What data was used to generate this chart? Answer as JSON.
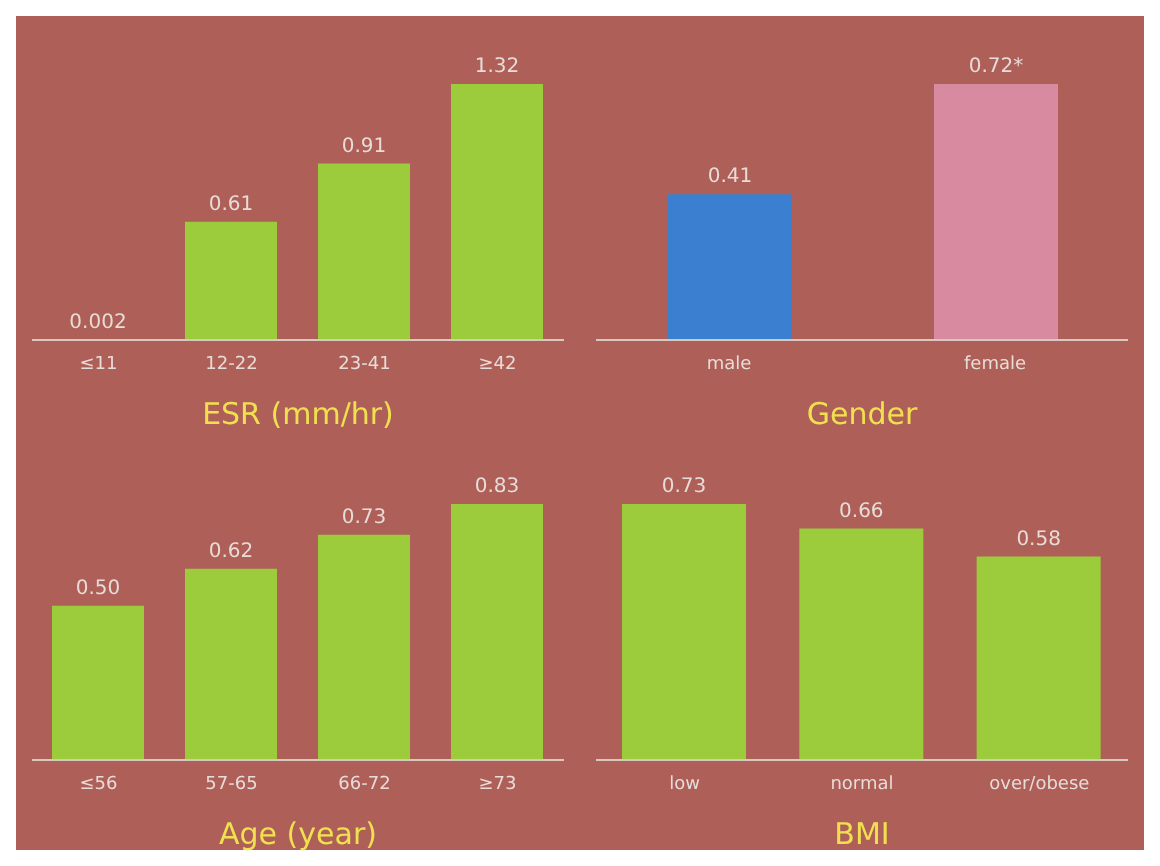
{
  "chart_data": [
    {
      "type": "bar",
      "xlabel": "ESR (mm/hr)",
      "categories": [
        "≤11",
        "12-22",
        "23-41",
        "≥42"
      ],
      "values": [
        0.002,
        0.61,
        0.91,
        1.32
      ],
      "color": "#9ccc3c",
      "data_labels": true,
      "tick_labels": "x"
    },
    {
      "type": "bar",
      "xlabel": "Gender",
      "categories": [
        "male",
        "female"
      ],
      "values": [
        0.41,
        0.72
      ],
      "colors": [
        "#3a7fd0",
        "#d88aa0"
      ],
      "value_labels": [
        "0.41",
        "0.72*"
      ],
      "tick_labels": "x"
    },
    {
      "type": "bar",
      "xlabel": "Age (year)",
      "categories": [
        "≤56",
        "57-65",
        "66-72",
        "≥73"
      ],
      "values": [
        0.5,
        0.62,
        0.73,
        0.83
      ],
      "color": "#9ccc3c",
      "value_labels": [
        "0.50",
        "0.62",
        "0.73",
        "0.83"
      ],
      "tick_labels": "x"
    },
    {
      "type": "bar",
      "xlabel": "BMI",
      "categories": [
        "low",
        "normal",
        "over/obese"
      ],
      "values": [
        0.73,
        0.66,
        0.58
      ],
      "color": "#9ccc3c",
      "data_labels": true,
      "tick_labels": "x"
    }
  ]
}
